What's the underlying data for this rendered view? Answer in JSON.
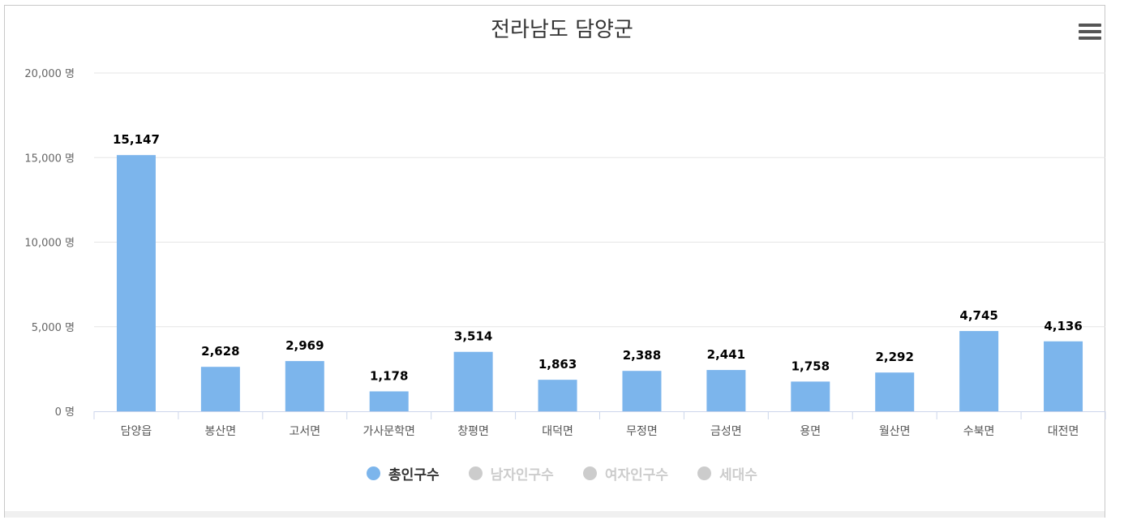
{
  "chart_data": {
    "type": "bar",
    "title": "전라남도 담양군",
    "categories": [
      "담양읍",
      "봉산면",
      "고서면",
      "가사문학면",
      "창평면",
      "대덕면",
      "무정면",
      "금성면",
      "용면",
      "월산면",
      "수북면",
      "대전면"
    ],
    "series": [
      {
        "name": "총인구수",
        "values": [
          15147,
          2628,
          2969,
          1178,
          3514,
          1863,
          2388,
          2441,
          1758,
          2292,
          4745,
          4136
        ]
      }
    ],
    "data_labels": [
      "15,147",
      "2,628",
      "2,969",
      "1,178",
      "3,514",
      "1,863",
      "2,388",
      "2,441",
      "1,758",
      "2,292",
      "4,745",
      "4,136"
    ],
    "ylim": [
      0,
      20000
    ],
    "yticks": [
      "0 명",
      "5,000 명",
      "10,000 명",
      "15,000 명",
      "20,000 명"
    ],
    "ytick_values": [
      0,
      5000,
      10000,
      15000,
      20000
    ],
    "grid": true,
    "legend_position": "bottom-center",
    "bar_color": "#7cb5ec"
  },
  "legend": [
    {
      "label": "총인구수",
      "active": true,
      "color": "#7cb5ec"
    },
    {
      "label": "남자인구수",
      "active": false,
      "color": "#cccccc"
    },
    {
      "label": "여자인구수",
      "active": false,
      "color": "#cccccc"
    },
    {
      "label": "세대수",
      "active": false,
      "color": "#cccccc"
    }
  ],
  "menu": {
    "icon": "hamburger-menu-icon"
  }
}
